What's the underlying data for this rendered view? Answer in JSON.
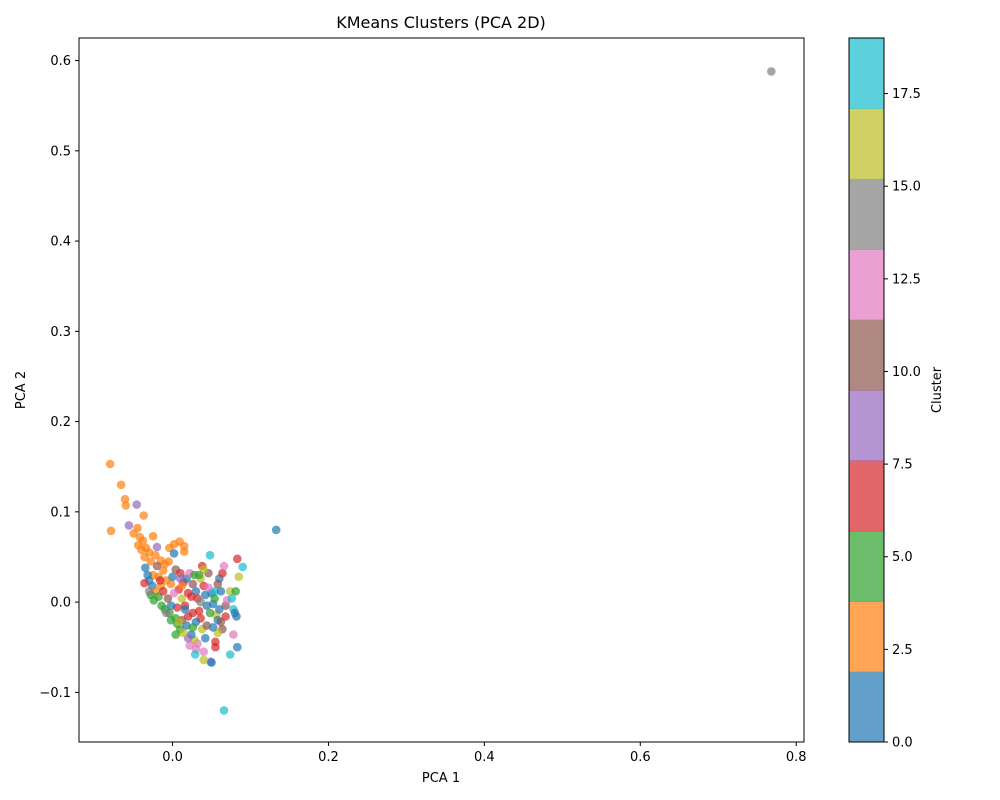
{
  "chart_data": {
    "type": "scatter",
    "title": "KMeans Clusters (PCA 2D)",
    "xlabel": "PCA 1",
    "ylabel": "PCA 2",
    "xlim": [
      -0.12,
      0.81
    ],
    "ylim": [
      -0.155,
      0.625
    ],
    "xticks": [
      0.0,
      0.2,
      0.4,
      0.6,
      0.8
    ],
    "xtick_labels": [
      "0.0",
      "0.2",
      "0.4",
      "0.6",
      "0.8"
    ],
    "yticks": [
      -0.1,
      0.0,
      0.1,
      0.2,
      0.3,
      0.4,
      0.5,
      0.6
    ],
    "ytick_labels": [
      "−0.1",
      "0.0",
      "0.1",
      "0.2",
      "0.3",
      "0.4",
      "0.5",
      "0.6"
    ],
    "grid": false,
    "colorbar": {
      "label": "Cluster",
      "range": [
        0,
        19
      ],
      "ticks": [
        0.0,
        2.5,
        5.0,
        7.5,
        10.0,
        12.5,
        15.0,
        17.5
      ],
      "tick_labels": [
        "0.0",
        "2.5",
        "5.0",
        "7.5",
        "10.0",
        "12.5",
        "15.0",
        "17.5"
      ],
      "colors": [
        "#1f77b4",
        "#ff7f0e",
        "#2ca02c",
        "#d62728",
        "#9467bd",
        "#8c564b",
        "#e377c2",
        "#7f7f7f",
        "#bcbd22",
        "#17becf"
      ]
    },
    "points": [
      {
        "x": 0.768,
        "y": 0.588,
        "cluster": 14
      },
      {
        "x": 0.133,
        "y": 0.08,
        "cluster": 0
      },
      {
        "x": -0.08,
        "y": 0.153,
        "cluster": 2
      },
      {
        "x": -0.066,
        "y": 0.13,
        "cluster": 2
      },
      {
        "x": -0.061,
        "y": 0.114,
        "cluster": 2
      },
      {
        "x": -0.06,
        "y": 0.107,
        "cluster": 2
      },
      {
        "x": -0.079,
        "y": 0.079,
        "cluster": 2
      },
      {
        "x": -0.046,
        "y": 0.108,
        "cluster": 8
      },
      {
        "x": -0.037,
        "y": 0.096,
        "cluster": 2
      },
      {
        "x": -0.056,
        "y": 0.085,
        "cluster": 8
      },
      {
        "x": -0.05,
        "y": 0.076,
        "cluster": 2
      },
      {
        "x": -0.045,
        "y": 0.082,
        "cluster": 2
      },
      {
        "x": -0.042,
        "y": 0.072,
        "cluster": 2
      },
      {
        "x": -0.038,
        "y": 0.068,
        "cluster": 2
      },
      {
        "x": -0.044,
        "y": 0.063,
        "cluster": 2
      },
      {
        "x": -0.04,
        "y": 0.058,
        "cluster": 2
      },
      {
        "x": -0.034,
        "y": 0.06,
        "cluster": 2
      },
      {
        "x": -0.03,
        "y": 0.055,
        "cluster": 2
      },
      {
        "x": -0.036,
        "y": 0.05,
        "cluster": 2
      },
      {
        "x": -0.025,
        "y": 0.073,
        "cluster": 2
      },
      {
        "x": -0.02,
        "y": 0.061,
        "cluster": 8
      },
      {
        "x": -0.022,
        "y": 0.052,
        "cluster": 2
      },
      {
        "x": -0.028,
        "y": 0.045,
        "cluster": 2
      },
      {
        "x": -0.015,
        "y": 0.046,
        "cluster": 2
      },
      {
        "x": -0.01,
        "y": 0.042,
        "cluster": 2
      },
      {
        "x": -0.005,
        "y": 0.045,
        "cluster": 2
      },
      {
        "x": -0.004,
        "y": 0.06,
        "cluster": 2
      },
      {
        "x": 0.002,
        "y": 0.064,
        "cluster": 2
      },
      {
        "x": 0.009,
        "y": 0.067,
        "cluster": 2
      },
      {
        "x": 0.015,
        "y": 0.062,
        "cluster": 2
      },
      {
        "x": 0.015,
        "y": 0.056,
        "cluster": 2
      },
      {
        "x": 0.002,
        "y": 0.054,
        "cluster": 0
      },
      {
        "x": -0.012,
        "y": 0.035,
        "cluster": 2
      },
      {
        "x": -0.018,
        "y": 0.028,
        "cluster": 2
      },
      {
        "x": -0.008,
        "y": 0.024,
        "cluster": 2
      },
      {
        "x": -0.002,
        "y": 0.02,
        "cluster": 2
      },
      {
        "x": -0.015,
        "y": 0.018,
        "cluster": 2
      },
      {
        "x": -0.025,
        "y": 0.03,
        "cluster": 2
      },
      {
        "x": -0.035,
        "y": 0.038,
        "cluster": 0
      },
      {
        "x": -0.032,
        "y": 0.03,
        "cluster": 0
      },
      {
        "x": -0.03,
        "y": 0.024,
        "cluster": 0
      },
      {
        "x": -0.036,
        "y": 0.021,
        "cluster": 6
      },
      {
        "x": -0.026,
        "y": 0.018,
        "cluster": 0
      },
      {
        "x": -0.022,
        "y": 0.012,
        "cluster": 2
      },
      {
        "x": -0.028,
        "y": 0.008,
        "cluster": 4
      },
      {
        "x": -0.024,
        "y": 0.002,
        "cluster": 4
      },
      {
        "x": -0.018,
        "y": 0.006,
        "cluster": 4
      },
      {
        "x": -0.014,
        "y": -0.004,
        "cluster": 4
      },
      {
        "x": -0.01,
        "y": -0.008,
        "cluster": 4
      },
      {
        "x": -0.004,
        "y": -0.012,
        "cluster": 4
      },
      {
        "x": -0.002,
        "y": -0.02,
        "cluster": 4
      },
      {
        "x": 0.004,
        "y": -0.018,
        "cluster": 4
      },
      {
        "x": 0.006,
        "y": -0.024,
        "cluster": 4
      },
      {
        "x": 0.01,
        "y": -0.03,
        "cluster": 4
      },
      {
        "x": -0.006,
        "y": 0.004,
        "cluster": 10
      },
      {
        "x": -0.012,
        "y": 0.012,
        "cluster": 6
      },
      {
        "x": 0.0,
        "y": 0.028,
        "cluster": 0
      },
      {
        "x": 0.004,
        "y": 0.036,
        "cluster": 10
      },
      {
        "x": 0.01,
        "y": 0.032,
        "cluster": 6
      },
      {
        "x": 0.014,
        "y": 0.022,
        "cluster": 6
      },
      {
        "x": 0.008,
        "y": 0.014,
        "cluster": 6
      },
      {
        "x": 0.012,
        "y": 0.004,
        "cluster": 16
      },
      {
        "x": 0.016,
        "y": -0.004,
        "cluster": 6
      },
      {
        "x": 0.02,
        "y": 0.01,
        "cluster": 6
      },
      {
        "x": 0.018,
        "y": 0.026,
        "cluster": 0
      },
      {
        "x": 0.022,
        "y": 0.032,
        "cluster": 12
      },
      {
        "x": 0.026,
        "y": 0.02,
        "cluster": 10
      },
      {
        "x": 0.028,
        "y": 0.03,
        "cluster": 4
      },
      {
        "x": 0.03,
        "y": 0.012,
        "cluster": 0
      },
      {
        "x": 0.032,
        "y": 0.004,
        "cluster": 6
      },
      {
        "x": 0.034,
        "y": -0.01,
        "cluster": 6
      },
      {
        "x": 0.036,
        "y": 0.026,
        "cluster": 16
      },
      {
        "x": 0.038,
        "y": 0.04,
        "cluster": 6
      },
      {
        "x": 0.04,
        "y": 0.018,
        "cluster": 6
      },
      {
        "x": 0.042,
        "y": 0.008,
        "cluster": 0
      },
      {
        "x": 0.044,
        "y": -0.004,
        "cluster": 0
      },
      {
        "x": 0.046,
        "y": 0.032,
        "cluster": 10
      },
      {
        "x": 0.048,
        "y": 0.052,
        "cluster": 18
      },
      {
        "x": 0.05,
        "y": 0.01,
        "cluster": 0
      },
      {
        "x": 0.052,
        "y": -0.002,
        "cluster": 0
      },
      {
        "x": 0.054,
        "y": 0.012,
        "cluster": 18
      },
      {
        "x": 0.056,
        "y": -0.014,
        "cluster": 16
      },
      {
        "x": 0.058,
        "y": -0.02,
        "cluster": 0
      },
      {
        "x": 0.06,
        "y": 0.026,
        "cluster": 0
      },
      {
        "x": 0.062,
        "y": 0.012,
        "cluster": 0
      },
      {
        "x": 0.064,
        "y": 0.032,
        "cluster": 6
      },
      {
        "x": 0.066,
        "y": 0.04,
        "cluster": 12
      },
      {
        "x": 0.068,
        "y": -0.004,
        "cluster": 10
      },
      {
        "x": 0.07,
        "y": 0.002,
        "cluster": 12
      },
      {
        "x": 0.074,
        "y": 0.012,
        "cluster": 16
      },
      {
        "x": 0.076,
        "y": 0.004,
        "cluster": 18
      },
      {
        "x": 0.078,
        "y": -0.008,
        "cluster": 18
      },
      {
        "x": 0.08,
        "y": -0.012,
        "cluster": 0
      },
      {
        "x": 0.082,
        "y": -0.016,
        "cluster": 0
      },
      {
        "x": 0.081,
        "y": 0.012,
        "cluster": 4
      },
      {
        "x": 0.083,
        "y": 0.048,
        "cluster": 6
      },
      {
        "x": 0.085,
        "y": 0.028,
        "cluster": 16
      },
      {
        "x": 0.09,
        "y": 0.039,
        "cluster": 18
      },
      {
        "x": 0.078,
        "y": -0.036,
        "cluster": 12
      },
      {
        "x": 0.083,
        "y": -0.05,
        "cluster": 0
      },
      {
        "x": 0.074,
        "y": -0.058,
        "cluster": 18
      },
      {
        "x": 0.064,
        "y": -0.03,
        "cluster": 10
      },
      {
        "x": 0.058,
        "y": -0.034,
        "cluster": 16
      },
      {
        "x": 0.055,
        "y": -0.044,
        "cluster": 6
      },
      {
        "x": 0.055,
        "y": -0.05,
        "cluster": 6
      },
      {
        "x": 0.049,
        "y": -0.066,
        "cluster": 8
      },
      {
        "x": 0.05,
        "y": -0.067,
        "cluster": 0
      },
      {
        "x": 0.04,
        "y": -0.064,
        "cluster": 16
      },
      {
        "x": 0.04,
        "y": -0.055,
        "cluster": 12
      },
      {
        "x": 0.042,
        "y": -0.04,
        "cluster": 0
      },
      {
        "x": 0.038,
        "y": -0.03,
        "cluster": 16
      },
      {
        "x": 0.036,
        "y": -0.018,
        "cluster": 6
      },
      {
        "x": 0.032,
        "y": -0.046,
        "cluster": 12
      },
      {
        "x": 0.03,
        "y": -0.052,
        "cluster": 12
      },
      {
        "x": 0.029,
        "y": -0.058,
        "cluster": 18
      },
      {
        "x": 0.028,
        "y": -0.042,
        "cluster": 16
      },
      {
        "x": 0.024,
        "y": -0.036,
        "cluster": 0
      },
      {
        "x": 0.022,
        "y": -0.048,
        "cluster": 12
      },
      {
        "x": 0.02,
        "y": -0.04,
        "cluster": 8
      },
      {
        "x": 0.018,
        "y": -0.026,
        "cluster": 0
      },
      {
        "x": 0.014,
        "y": -0.034,
        "cluster": 16
      },
      {
        "x": 0.012,
        "y": -0.02,
        "cluster": 10
      },
      {
        "x": 0.008,
        "y": -0.022,
        "cluster": 16
      },
      {
        "x": 0.066,
        "y": -0.12,
        "cluster": 18
      },
      {
        "x": 0.026,
        "y": -0.012,
        "cluster": 6
      },
      {
        "x": 0.03,
        "y": -0.022,
        "cluster": 0
      },
      {
        "x": 0.044,
        "y": -0.026,
        "cluster": 10
      },
      {
        "x": 0.048,
        "y": -0.012,
        "cluster": 4
      },
      {
        "x": 0.052,
        "y": -0.028,
        "cluster": 0
      },
      {
        "x": 0.06,
        "y": -0.008,
        "cluster": 0
      },
      {
        "x": 0.062,
        "y": -0.022,
        "cluster": 10
      },
      {
        "x": 0.068,
        "y": -0.016,
        "cluster": 6
      },
      {
        "x": 0.04,
        "y": 0.036,
        "cluster": 16
      },
      {
        "x": 0.034,
        "y": 0.03,
        "cluster": 4
      },
      {
        "x": 0.024,
        "y": 0.006,
        "cluster": 6
      },
      {
        "x": 0.006,
        "y": -0.006,
        "cluster": 6
      },
      {
        "x": -0.002,
        "y": -0.004,
        "cluster": 0
      },
      {
        "x": 0.002,
        "y": 0.01,
        "cluster": 12
      },
      {
        "x": 0.012,
        "y": 0.018,
        "cluster": 2
      },
      {
        "x": 0.02,
        "y": -0.016,
        "cluster": 6
      },
      {
        "x": 0.026,
        "y": -0.028,
        "cluster": 4
      },
      {
        "x": 0.036,
        "y": 0.0,
        "cluster": 14
      },
      {
        "x": 0.046,
        "y": 0.016,
        "cluster": 12
      },
      {
        "x": 0.054,
        "y": 0.004,
        "cluster": 4
      },
      {
        "x": 0.058,
        "y": 0.02,
        "cluster": 10
      },
      {
        "x": -0.008,
        "y": -0.012,
        "cluster": 14
      },
      {
        "x": 0.004,
        "y": -0.036,
        "cluster": 4
      },
      {
        "x": 0.016,
        "y": -0.008,
        "cluster": 0
      },
      {
        "x": 0.01,
        "y": 0.026,
        "cluster": 8
      },
      {
        "x": -0.02,
        "y": 0.04,
        "cluster": 10
      },
      {
        "x": -0.016,
        "y": 0.024,
        "cluster": 6
      },
      {
        "x": -0.03,
        "y": 0.012,
        "cluster": 14
      }
    ]
  }
}
